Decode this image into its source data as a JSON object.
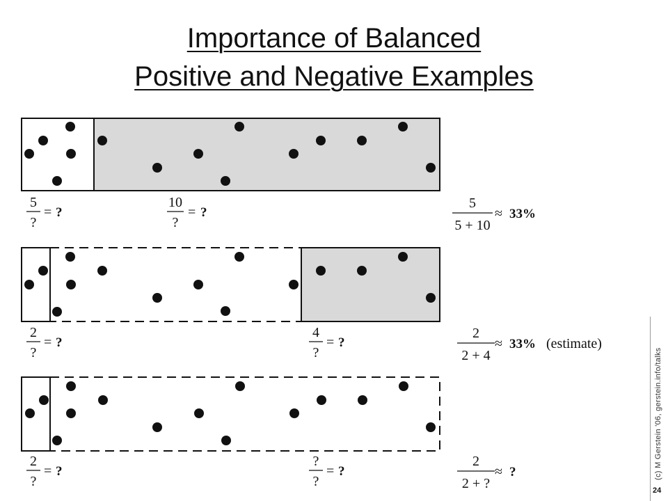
{
  "slide": {
    "title_line1": "Importance of Balanced",
    "title_line2": "Positive and Negative Examples",
    "side_credit": "(c) M Gerstein '06, gerstein.info/talks",
    "page_number": "24"
  },
  "panels": [
    {
      "left_fraction": {
        "num": "5",
        "den": "?",
        "result": "?"
      },
      "mid_fraction": {
        "num": "10",
        "den": "?",
        "result": "?"
      },
      "result_fraction": {
        "num": "5",
        "den": "5 + 10",
        "value": "33%",
        "note": ""
      }
    },
    {
      "left_fraction": {
        "num": "2",
        "den": "?",
        "result": "?"
      },
      "mid_fraction": {
        "num": "4",
        "den": "?",
        "result": "?"
      },
      "result_fraction": {
        "num": "2",
        "den": "2 + 4",
        "value": "33%",
        "note": "(estimate)"
      }
    },
    {
      "left_fraction": {
        "num": "2",
        "den": "?",
        "result": "?"
      },
      "mid_fraction": {
        "num": "?",
        "den": "?",
        "result": "?"
      },
      "result_fraction": {
        "num": "2",
        "den": "2 + ?",
        "value": "?",
        "note": ""
      }
    }
  ],
  "symbols": {
    "equals": "=",
    "approx": "≈"
  },
  "colors": {
    "shaded": "#d9d9d9",
    "ink": "#111111"
  }
}
